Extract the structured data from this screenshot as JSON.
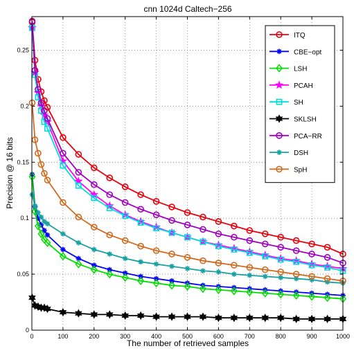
{
  "chart_data": {
    "type": "line",
    "title": "cnn 1024d Caltech−256",
    "xlabel": "The number of retrieved samples",
    "ylabel": "Precision @ 16 bits",
    "xlim": [
      0,
      1000
    ],
    "ylim": [
      0,
      0.28
    ],
    "xticks": [
      0,
      100,
      200,
      300,
      400,
      500,
      600,
      700,
      800,
      900,
      1000
    ],
    "yticks": [
      0,
      0.05,
      0.1,
      0.15,
      0.2,
      0.25
    ],
    "ytick_labels": [
      "0",
      "0.05",
      "0.1",
      "0.15",
      "0.2",
      "0.25"
    ],
    "grid": true,
    "legend_position": "top-right",
    "x": [
      1,
      10,
      20,
      30,
      40,
      50,
      100,
      150,
      200,
      250,
      300,
      350,
      400,
      450,
      500,
      550,
      600,
      650,
      700,
      750,
      800,
      850,
      900,
      950,
      1000
    ],
    "series": [
      {
        "name": "ITQ",
        "color": "#e8000b",
        "marker": "circle",
        "values": [
          0.275,
          0.241,
          0.224,
          0.213,
          0.205,
          0.199,
          0.172,
          0.157,
          0.145,
          0.136,
          0.128,
          0.121,
          0.115,
          0.11,
          0.105,
          0.101,
          0.097,
          0.093,
          0.089,
          0.086,
          0.083,
          0.08,
          0.077,
          0.074,
          0.068
        ]
      },
      {
        "name": "CBE−opt",
        "color": "#0000ff",
        "marker": "asterisk",
        "values": [
          0.139,
          0.11,
          0.1,
          0.094,
          0.089,
          0.085,
          0.072,
          0.064,
          0.058,
          0.054,
          0.051,
          0.048,
          0.046,
          0.044,
          0.042,
          0.04,
          0.039,
          0.038,
          0.037,
          0.036,
          0.035,
          0.034,
          0.033,
          0.032,
          0.031
        ]
      },
      {
        "name": "LSH",
        "color": "#00dd00",
        "marker": "diamond",
        "values": [
          0.137,
          0.106,
          0.093,
          0.086,
          0.081,
          0.078,
          0.066,
          0.059,
          0.054,
          0.05,
          0.047,
          0.044,
          0.042,
          0.04,
          0.039,
          0.037,
          0.036,
          0.035,
          0.034,
          0.033,
          0.032,
          0.031,
          0.03,
          0.029,
          0.028
        ]
      },
      {
        "name": "PCAH",
        "color": "#ff00ff",
        "marker": "star",
        "values": [
          0.27,
          0.23,
          0.212,
          0.2,
          0.192,
          0.186,
          0.151,
          0.133,
          0.121,
          0.111,
          0.103,
          0.097,
          0.092,
          0.087,
          0.083,
          0.079,
          0.076,
          0.073,
          0.07,
          0.067,
          0.064,
          0.062,
          0.059,
          0.057,
          0.055
        ]
      },
      {
        "name": "SH",
        "color": "#00dddd",
        "marker": "square",
        "values": [
          0.27,
          0.228,
          0.208,
          0.196,
          0.186,
          0.18,
          0.147,
          0.129,
          0.118,
          0.109,
          0.102,
          0.096,
          0.091,
          0.087,
          0.083,
          0.079,
          0.075,
          0.072,
          0.069,
          0.066,
          0.063,
          0.061,
          0.058,
          0.056,
          0.053
        ]
      },
      {
        "name": "SKLSH",
        "color": "#000000",
        "marker": "hexagram",
        "values": [
          0.029,
          0.022,
          0.021,
          0.02,
          0.02,
          0.019,
          0.016,
          0.015,
          0.014,
          0.014,
          0.013,
          0.013,
          0.012,
          0.012,
          0.012,
          0.012,
          0.011,
          0.011,
          0.011,
          0.011,
          0.011,
          0.01,
          0.01,
          0.01,
          0.01
        ]
      },
      {
        "name": "PCA−RR",
        "color": "#a000c0",
        "marker": "circle",
        "values": [
          0.276,
          0.232,
          0.215,
          0.203,
          0.196,
          0.189,
          0.158,
          0.141,
          0.13,
          0.121,
          0.114,
          0.108,
          0.103,
          0.098,
          0.094,
          0.09,
          0.086,
          0.083,
          0.08,
          0.077,
          0.074,
          0.071,
          0.068,
          0.065,
          0.06
        ]
      },
      {
        "name": "DSH",
        "color": "#17a2a2",
        "marker": "asterisk",
        "values": [
          0.121,
          0.111,
          0.105,
          0.101,
          0.097,
          0.095,
          0.086,
          0.078,
          0.072,
          0.068,
          0.064,
          0.061,
          0.059,
          0.057,
          0.055,
          0.053,
          0.052,
          0.05,
          0.049,
          0.048,
          0.047,
          0.046,
          0.045,
          0.043,
          0.042
        ]
      },
      {
        "name": "SpH",
        "color": "#d2691e",
        "marker": "circle",
        "values": [
          0.203,
          0.17,
          0.158,
          0.148,
          0.14,
          0.134,
          0.114,
          0.101,
          0.092,
          0.085,
          0.08,
          0.075,
          0.071,
          0.068,
          0.065,
          0.062,
          0.06,
          0.058,
          0.056,
          0.054,
          0.052,
          0.05,
          0.048,
          0.046,
          0.044
        ]
      }
    ]
  }
}
